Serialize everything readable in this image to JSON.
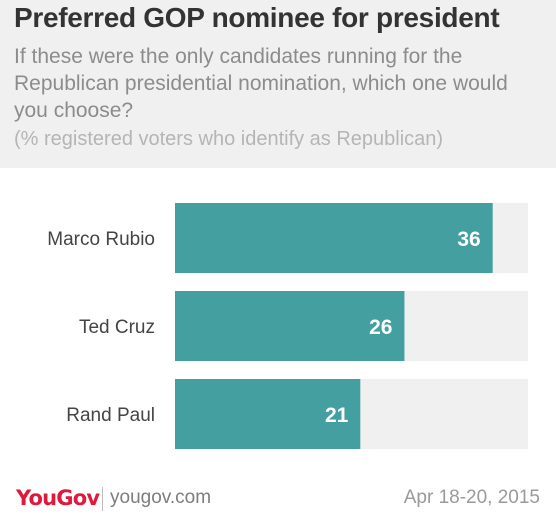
{
  "header": {
    "title": "Preferred GOP nominee for president",
    "subtitle": "If these were the only candidates running for the Republican presidential nomination, which one would you choose?",
    "note": "(% registered voters who identify as Republican)"
  },
  "chart_data": {
    "type": "bar",
    "orientation": "horizontal",
    "categories": [
      "Marco Rubio",
      "Ted Cruz",
      "Rand Paul"
    ],
    "values": [
      36,
      26,
      21
    ],
    "xlim": [
      0,
      40
    ],
    "colors": {
      "bar": "#449fa0",
      "track": "#f0f0f0",
      "label": "#444444",
      "value": "#ffffff"
    }
  },
  "footer": {
    "logo": "YouGov",
    "site": "yougov.com",
    "date": "Apr 18-20, 2015"
  }
}
